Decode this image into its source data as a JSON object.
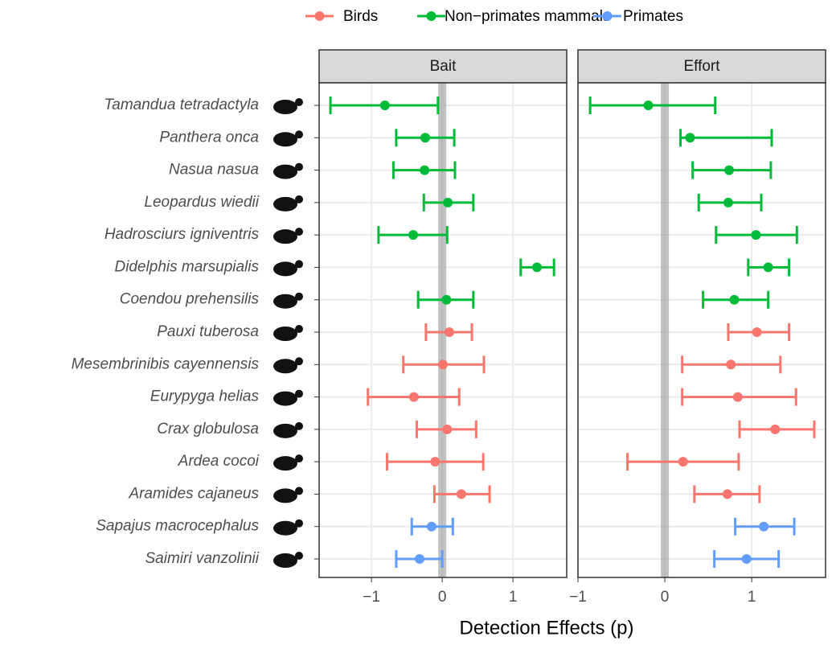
{
  "chart_data": {
    "type": "forest",
    "x_label": "Detection Effects (p)",
    "reference_line": 0,
    "grid": true,
    "categories": [
      "Tamandua tetradactyla",
      "Panthera onca",
      "Nasua nasua",
      "Leopardus wiedii",
      "Hadrosciurs igniventris",
      "Didelphis marsupialis",
      "Coendou prehensilis",
      "Pauxi tuberosa",
      "Mesembrinibis cayennensis",
      "Eurypyga helias",
      "Crax globulosa",
      "Ardea cocoi",
      "Aramides cajaneus",
      "Sapajus macrocephalus",
      "Saimiri vanzolinii"
    ],
    "series": [
      {
        "name": "Birds",
        "color": "#F8766D"
      },
      {
        "name": "Non−primates mammals",
        "color": "#00BA38"
      },
      {
        "name": "Primates",
        "color": "#619CFF"
      }
    ],
    "panels": [
      {
        "title": "Bait",
        "xlim": [
          -1.74,
          1.76
        ],
        "xticks": [
          {
            "value": -1,
            "label": "−1"
          },
          0,
          1
        ],
        "series": [
          {
            "values": [
              null,
              null,
              null,
              null,
              null,
              null,
              null,
              0.1,
              0.01,
              -0.4,
              0.07,
              -0.1,
              0.27,
              null,
              null
            ],
            "lower": [
              null,
              null,
              null,
              null,
              null,
              null,
              null,
              -0.23,
              -0.55,
              -1.05,
              -0.36,
              -0.78,
              -0.11,
              null,
              null
            ],
            "upper": [
              null,
              null,
              null,
              null,
              null,
              null,
              null,
              0.42,
              0.59,
              0.24,
              0.48,
              0.58,
              0.67,
              null,
              null
            ]
          },
          {
            "values": [
              -0.81,
              -0.24,
              -0.25,
              0.08,
              -0.41,
              1.34,
              0.06,
              null,
              null,
              null,
              null,
              null,
              null,
              null,
              null
            ],
            "lower": [
              -1.58,
              -0.65,
              -0.69,
              -0.26,
              -0.9,
              1.11,
              -0.34,
              null,
              null,
              null,
              null,
              null,
              null,
              null,
              null
            ],
            "upper": [
              -0.06,
              0.17,
              0.18,
              0.44,
              0.07,
              1.58,
              0.44,
              null,
              null,
              null,
              null,
              null,
              null,
              null,
              null
            ]
          },
          {
            "values": [
              null,
              null,
              null,
              null,
              null,
              null,
              null,
              null,
              null,
              null,
              null,
              null,
              null,
              -0.15,
              -0.32
            ],
            "lower": [
              null,
              null,
              null,
              null,
              null,
              null,
              null,
              null,
              null,
              null,
              null,
              null,
              null,
              -0.43,
              -0.65
            ],
            "upper": [
              null,
              null,
              null,
              null,
              null,
              null,
              null,
              null,
              null,
              null,
              null,
              null,
              null,
              0.15,
              0.0
            ]
          }
        ]
      },
      {
        "title": "Effort",
        "xlim": [
          -1.0,
          1.85
        ],
        "xticks": [
          {
            "value": -1,
            "label": "−1"
          },
          0,
          1
        ],
        "series": [
          {
            "values": [
              null,
              null,
              null,
              null,
              null,
              null,
              null,
              1.06,
              0.76,
              0.84,
              1.27,
              0.21,
              0.72,
              null,
              null
            ],
            "lower": [
              null,
              null,
              null,
              null,
              null,
              null,
              null,
              0.73,
              0.2,
              0.2,
              0.86,
              -0.43,
              0.34,
              null,
              null
            ],
            "upper": [
              null,
              null,
              null,
              null,
              null,
              null,
              null,
              1.43,
              1.33,
              1.51,
              1.72,
              0.85,
              1.09,
              null,
              null
            ]
          },
          {
            "values": [
              -0.19,
              0.29,
              0.74,
              0.73,
              1.05,
              1.19,
              0.8,
              null,
              null,
              null,
              null,
              null,
              null,
              null,
              null
            ],
            "lower": [
              -0.86,
              0.18,
              0.32,
              0.39,
              0.59,
              0.96,
              0.44,
              null,
              null,
              null,
              null,
              null,
              null,
              null,
              null
            ],
            "upper": [
              0.58,
              1.23,
              1.22,
              1.11,
              1.52,
              1.43,
              1.19,
              null,
              null,
              null,
              null,
              null,
              null,
              null,
              null
            ]
          },
          {
            "values": [
              null,
              null,
              null,
              null,
              null,
              null,
              null,
              null,
              null,
              null,
              null,
              null,
              null,
              1.14,
              0.94
            ],
            "lower": [
              null,
              null,
              null,
              null,
              null,
              null,
              null,
              null,
              null,
              null,
              null,
              null,
              null,
              0.81,
              0.57
            ],
            "upper": [
              null,
              null,
              null,
              null,
              null,
              null,
              null,
              null,
              null,
              null,
              null,
              null,
              null,
              1.49,
              1.31
            ]
          }
        ]
      }
    ]
  }
}
